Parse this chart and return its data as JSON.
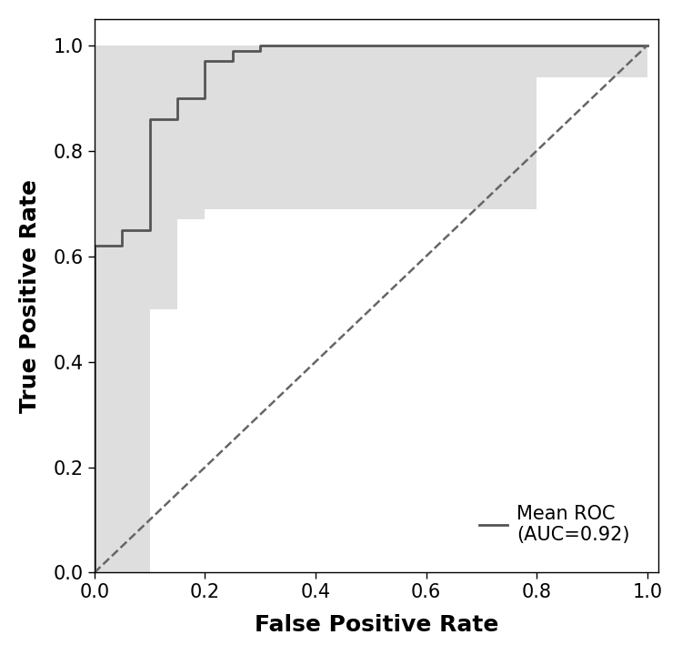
{
  "title": "",
  "xlabel": "False Positive Rate",
  "ylabel": "True Positive Rate",
  "xlabel_fontsize": 18,
  "ylabel_fontsize": 18,
  "tick_fontsize": 15,
  "legend_text_line1": "Mean ROC",
  "legend_text_line2": "(AUC=0.92)",
  "legend_fontsize": 15,
  "roc_color": "#555555",
  "roc_linewidth": 2.0,
  "fill_color": "#c8c8c8",
  "fill_alpha": 0.6,
  "diagonal_color": "#666666",
  "diagonal_linestyle": "--",
  "diagonal_linewidth": 1.8,
  "xlim": [
    0.0,
    1.02
  ],
  "ylim": [
    0.0,
    1.05
  ],
  "mean_fpr": [
    0.0,
    0.0,
    0.05,
    0.05,
    0.1,
    0.1,
    0.15,
    0.15,
    0.2,
    0.2,
    0.25,
    0.25,
    0.3,
    0.3,
    0.8,
    0.8,
    1.0
  ],
  "mean_tpr": [
    0.0,
    0.62,
    0.62,
    0.65,
    0.65,
    0.86,
    0.86,
    0.9,
    0.9,
    0.97,
    0.97,
    0.99,
    0.99,
    1.0,
    1.0,
    1.0,
    1.0
  ],
  "fpr_band": [
    0.0,
    0.05,
    0.05,
    0.1,
    0.1,
    0.15,
    0.15,
    0.2,
    0.2,
    0.25,
    0.25,
    0.3,
    0.3,
    0.8,
    0.8,
    1.0
  ],
  "tpr_upper": [
    1.0,
    1.0,
    1.0,
    1.0,
    1.0,
    1.0,
    1.0,
    1.0,
    1.0,
    1.0,
    1.0,
    1.0,
    1.0,
    1.0,
    1.0,
    1.0
  ],
  "tpr_lower": [
    0.0,
    0.0,
    0.0,
    0.0,
    0.5,
    0.5,
    0.67,
    0.67,
    0.69,
    0.69,
    0.69,
    0.69,
    0.69,
    0.94,
    0.94,
    1.0
  ],
  "background_color": "#ffffff",
  "xticks": [
    0.0,
    0.2,
    0.4,
    0.6,
    0.8,
    1.0
  ],
  "yticks": [
    0.0,
    0.2,
    0.4,
    0.6,
    0.8,
    1.0
  ]
}
